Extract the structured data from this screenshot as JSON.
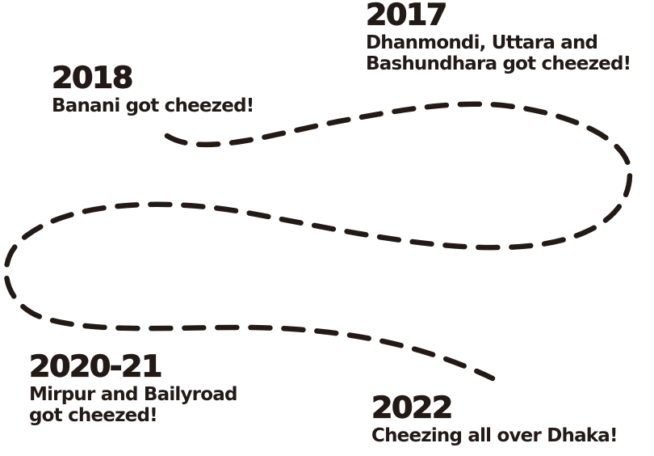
{
  "milestones": [
    {
      "year": "2017",
      "caption": [
        "Dhanmondi, Uttara and",
        "Bashundhara got cheezed!"
      ]
    },
    {
      "year": "2018",
      "caption": [
        "Banani got cheezed!"
      ]
    },
    {
      "year": "2020-21",
      "caption": [
        "Mirpur and Bailyroad",
        "got cheezed!"
      ]
    },
    {
      "year": "2022",
      "caption": [
        "Cheezing all over Dhaka!"
      ]
    }
  ],
  "colors": {
    "ink": "#231a16",
    "background": "#ffffff"
  }
}
